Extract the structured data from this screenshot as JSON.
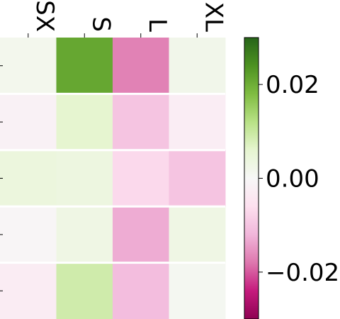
{
  "chart_data": {
    "type": "heatmap",
    "columns": [
      "SX",
      "S",
      "L",
      "XL"
    ],
    "rows": 5,
    "values": [
      [
        0.0015,
        0.021,
        -0.017,
        0.002
      ],
      [
        -0.0015,
        0.006,
        -0.01,
        -0.0025
      ],
      [
        0.004,
        0.0035,
        -0.007,
        -0.01
      ],
      [
        -0.0005,
        0.003,
        -0.013,
        0.003
      ],
      [
        -0.003,
        0.009,
        -0.011,
        0.001
      ]
    ],
    "colorbar": {
      "range": [
        -0.03,
        0.03
      ],
      "ticks": [
        0.02,
        0.0,
        -0.02
      ],
      "tick_labels": [
        "0.02",
        "0.00",
        "−0.02"
      ],
      "colormap": "PiYG"
    },
    "grid_lines": true
  }
}
